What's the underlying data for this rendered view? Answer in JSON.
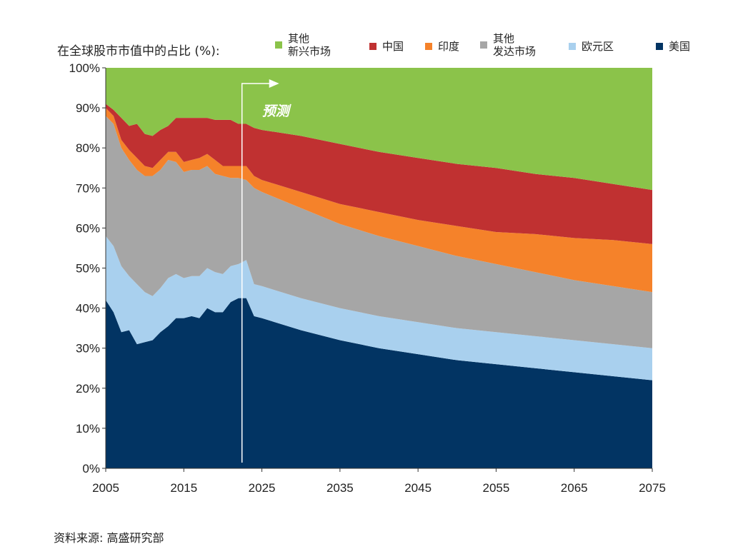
{
  "chart_data": {
    "type": "area",
    "stacked": true,
    "title": "在全球股市市值中的占比 (%):",
    "xlabel": "",
    "ylabel": "",
    "xlim": [
      2005,
      2075
    ],
    "ylim": [
      0,
      100
    ],
    "x_ticks": [
      "2005",
      "2015",
      "2025",
      "2035",
      "2045",
      "2055",
      "2065",
      "2075"
    ],
    "y_ticks": [
      "0%",
      "10%",
      "20%",
      "30%",
      "40%",
      "50%",
      "60%",
      "70%",
      "80%",
      "90%",
      "100%"
    ],
    "grid": false,
    "legend_position": "top",
    "annotation": {
      "label": "预测",
      "x": 2023
    },
    "x": [
      2005,
      2006,
      2007,
      2008,
      2009,
      2010,
      2011,
      2012,
      2013,
      2014,
      2015,
      2016,
      2017,
      2018,
      2019,
      2020,
      2021,
      2022,
      2023,
      2024,
      2025,
      2030,
      2035,
      2040,
      2045,
      2050,
      2055,
      2060,
      2065,
      2070,
      2075
    ],
    "series": [
      {
        "name": "美国",
        "color": "#023463",
        "values": [
          42,
          39,
          34,
          34.5,
          31,
          31.5,
          32,
          34,
          35.5,
          37.5,
          37.5,
          38,
          37.5,
          40,
          39,
          39,
          41.5,
          42.5,
          42.5,
          38,
          37.5,
          34.5,
          32,
          30,
          28.5,
          27,
          26,
          25,
          24,
          23,
          22
        ]
      },
      {
        "name": "欧元区",
        "color": "#a9d0ee",
        "values": [
          16,
          16.5,
          16.5,
          13.5,
          15,
          12.5,
          11,
          11,
          12,
          11,
          10,
          10,
          10.5,
          10,
          10,
          9.5,
          9,
          8.5,
          9.5,
          8,
          8,
          8,
          8,
          8,
          8,
          8,
          8,
          8,
          8,
          8,
          8
        ]
      },
      {
        "name": "其他\n发达市场",
        "color": "#a6a6a6",
        "values": [
          30,
          30.5,
          29.5,
          29,
          28.5,
          29,
          30,
          29.5,
          29.5,
          28,
          26.5,
          26.5,
          26.5,
          25.5,
          24.5,
          24.5,
          22,
          21.5,
          20,
          24,
          23.5,
          22.5,
          21,
          20,
          19,
          18,
          17,
          16,
          15,
          14.5,
          14
        ]
      },
      {
        "name": "印度",
        "color": "#f5822a",
        "values": [
          2,
          2,
          2,
          2.5,
          3,
          2.5,
          2,
          2.5,
          2,
          2.5,
          2.5,
          2.5,
          3,
          3,
          3.5,
          2.5,
          3,
          3,
          3.5,
          3,
          3,
          4,
          5,
          6,
          6.5,
          7.5,
          8,
          9.5,
          10.5,
          11.5,
          12
        ]
      },
      {
        "name": "中国",
        "color": "#c03131",
        "values": [
          1,
          1.5,
          5.5,
          6,
          8.5,
          8,
          8,
          7.5,
          6.5,
          8.5,
          11,
          10.5,
          10,
          9,
          10,
          11.5,
          11.5,
          10.5,
          10.5,
          12,
          12.5,
          14,
          15,
          15,
          15.5,
          15.5,
          16,
          15,
          15,
          14,
          13.5
        ]
      },
      {
        "name": "其他\n新兴市场",
        "color": "#8bc34a",
        "values": [
          9,
          10.5,
          12.5,
          14.5,
          14,
          16.5,
          17,
          15.5,
          14.5,
          12.5,
          12.5,
          12.5,
          12.5,
          12.5,
          13,
          13,
          13,
          14,
          14,
          15,
          15.5,
          17,
          19,
          21,
          22.5,
          24,
          25,
          26.5,
          27.5,
          29,
          30.5
        ]
      }
    ]
  },
  "legend": [
    {
      "line1": "其他",
      "line2": "新兴市场",
      "color": "#8bc34a"
    },
    {
      "line1": "中国",
      "line2": "",
      "color": "#c03131"
    },
    {
      "line1": "印度",
      "line2": "",
      "color": "#f5822a"
    },
    {
      "line1": "其他",
      "line2": "发达市场",
      "color": "#a6a6a6"
    },
    {
      "line1": "欧元区",
      "line2": "",
      "color": "#a9d0ee"
    },
    {
      "line1": "美国",
      "line2": "",
      "color": "#023463"
    }
  ],
  "source": "资料来源:  高盛研究部"
}
